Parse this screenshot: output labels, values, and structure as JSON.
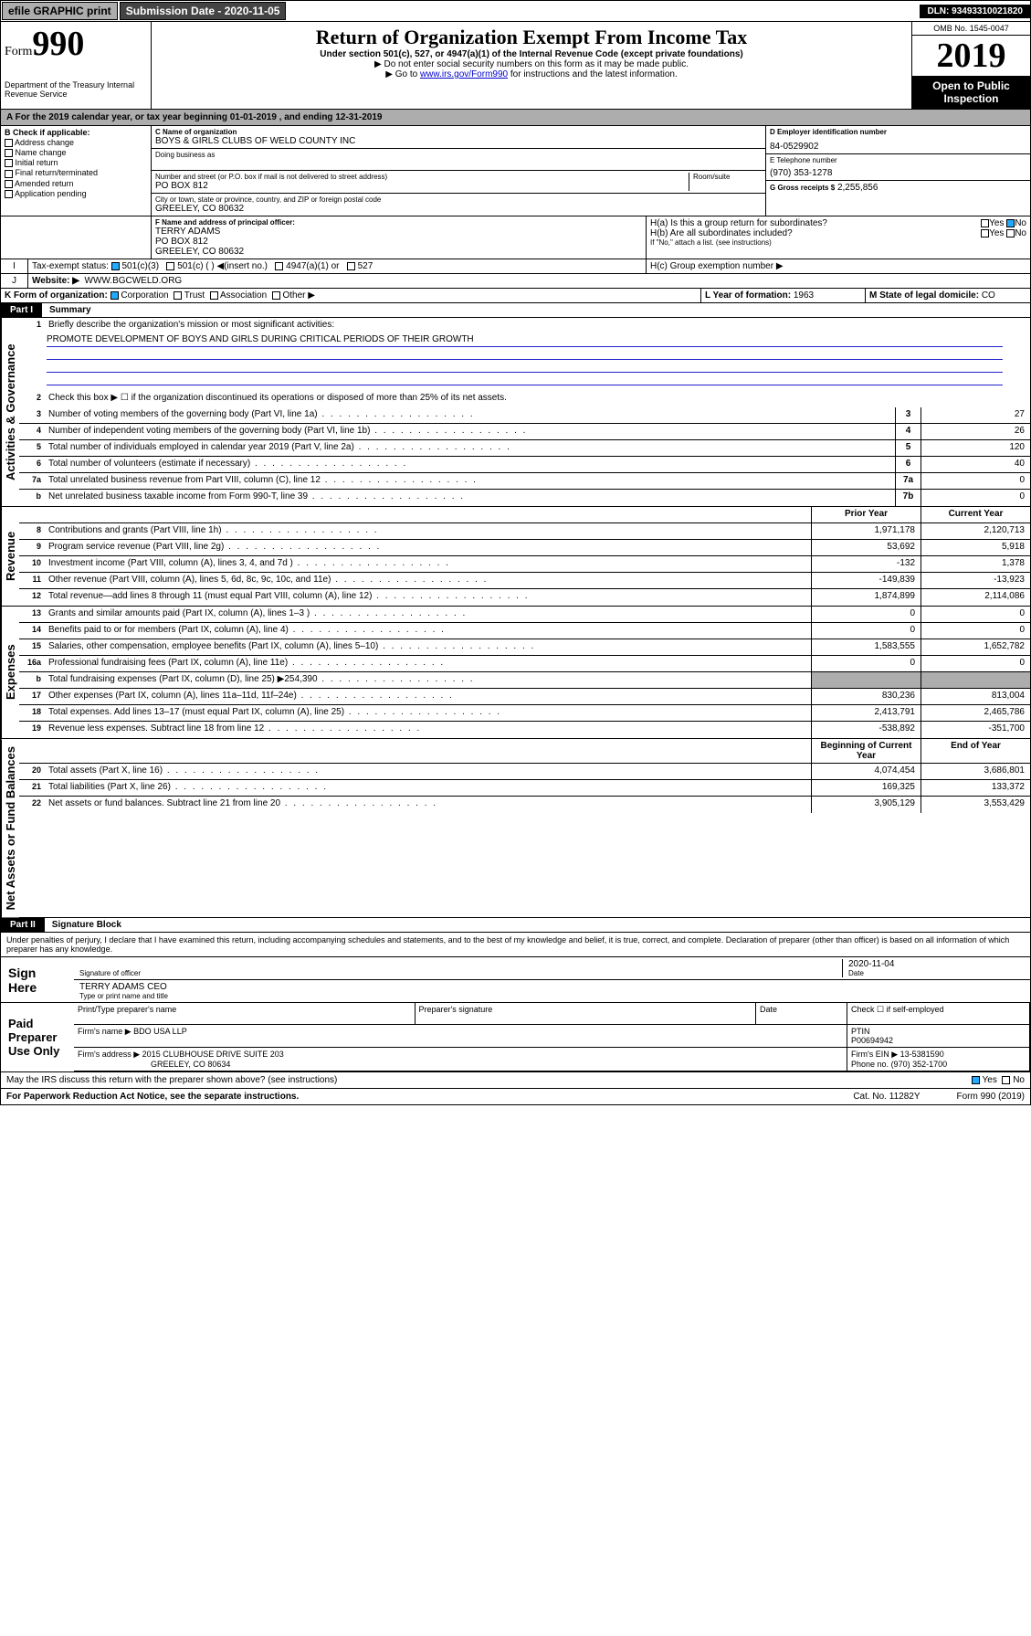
{
  "topbar": {
    "efile": "efile GRAPHIC print",
    "subLabel": "Submission Date - 2020-11-05",
    "dln": "DLN: 93493310021820"
  },
  "header": {
    "formWord": "Form",
    "formNum": "990",
    "dept": "Department of the Treasury\nInternal Revenue Service",
    "title": "Return of Organization Exempt From Income Tax",
    "sub": "Under section 501(c), 527, or 4947(a)(1) of the Internal Revenue Code (except private foundations)",
    "note1": "▶ Do not enter social security numbers on this form as it may be made public.",
    "note2_pre": "▶ Go to ",
    "note2_link": "www.irs.gov/Form990",
    "note2_post": " for instructions and the latest information.",
    "omb": "OMB No. 1545-0047",
    "year": "2019",
    "inspection": "Open to Public Inspection"
  },
  "periodA": "A For the 2019 calendar year, or tax year beginning 01-01-2019   , and ending 12-31-2019",
  "boxB": {
    "label": "B Check if applicable:",
    "items": [
      "Address change",
      "Name change",
      "Initial return",
      "Final return/terminated",
      "Amended return",
      "Application pending"
    ]
  },
  "boxC": {
    "nameLabel": "C Name of organization",
    "name": "BOYS & GIRLS CLUBS OF WELD COUNTY INC",
    "dbaLabel": "Doing business as",
    "dba": "",
    "addrLabel": "Number and street (or P.O. box if mail is not delivered to street address)",
    "roomLabel": "Room/suite",
    "addr": "PO BOX 812",
    "cityLabel": "City or town, state or province, country, and ZIP or foreign postal code",
    "city": "GREELEY, CO  80632"
  },
  "boxD": {
    "label": "D Employer identification number",
    "val": "84-0529902"
  },
  "boxE": {
    "label": "E Telephone number",
    "val": "(970) 353-1278"
  },
  "boxG": {
    "label": "G Gross receipts $",
    "val": "2,255,856"
  },
  "boxF": {
    "label": "F  Name and address of principal officer:",
    "name": "TERRY ADAMS",
    "addr1": "PO BOX 812",
    "addr2": "GREELEY, CO  80632"
  },
  "boxH": {
    "a": "H(a)  Is this a group return for subordinates?",
    "b": "H(b)  Are all subordinates included?",
    "bNote": "If \"No,\" attach a list. (see instructions)",
    "c": "H(c)  Group exemption number ▶",
    "yes": "Yes",
    "no": "No"
  },
  "boxI": {
    "label": "Tax-exempt status:",
    "opts": [
      "501(c)(3)",
      "501(c) (  ) ◀(insert no.)",
      "4947(a)(1) or",
      "527"
    ]
  },
  "boxJ": {
    "label": "Website: ▶",
    "val": "WWW.BGCWELD.ORG"
  },
  "boxK": {
    "label": "K Form of organization:",
    "opts": [
      "Corporation",
      "Trust",
      "Association",
      "Other ▶"
    ]
  },
  "boxL": {
    "label": "L Year of formation:",
    "val": "1963"
  },
  "boxM": {
    "label": "M State of legal domicile:",
    "val": "CO"
  },
  "part1": {
    "hdr": "Part I",
    "title": "Summary",
    "l1": "Briefly describe the organization's mission or most significant activities:",
    "mission": "PROMOTE DEVELOPMENT OF BOYS AND GIRLS DURING CRITICAL PERIODS OF THEIR GROWTH",
    "l2": "Check this box ▶ ☐  if the organization discontinued its operations or disposed of more than 25% of its net assets.",
    "govLabel": "Activities & Governance",
    "revLabel": "Revenue",
    "expLabel": "Expenses",
    "netLabel": "Net Assets or Fund Balances",
    "lines_gov": [
      {
        "n": "3",
        "t": "Number of voting members of the governing body (Part VI, line 1a)",
        "b": "3",
        "v": "27"
      },
      {
        "n": "4",
        "t": "Number of independent voting members of the governing body (Part VI, line 1b)",
        "b": "4",
        "v": "26"
      },
      {
        "n": "5",
        "t": "Total number of individuals employed in calendar year 2019 (Part V, line 2a)",
        "b": "5",
        "v": "120"
      },
      {
        "n": "6",
        "t": "Total number of volunteers (estimate if necessary)",
        "b": "6",
        "v": "40"
      },
      {
        "n": "7a",
        "t": "Total unrelated business revenue from Part VIII, column (C), line 12",
        "b": "7a",
        "v": "0"
      },
      {
        "n": "b",
        "t": "Net unrelated business taxable income from Form 990-T, line 39",
        "b": "7b",
        "v": "0"
      }
    ],
    "col_py": "Prior Year",
    "col_cy": "Current Year",
    "col_beg": "Beginning of Current Year",
    "col_end": "End of Year",
    "lines_rev": [
      {
        "n": "8",
        "t": "Contributions and grants (Part VIII, line 1h)",
        "py": "1,971,178",
        "cy": "2,120,713"
      },
      {
        "n": "9",
        "t": "Program service revenue (Part VIII, line 2g)",
        "py": "53,692",
        "cy": "5,918"
      },
      {
        "n": "10",
        "t": "Investment income (Part VIII, column (A), lines 3, 4, and 7d )",
        "py": "-132",
        "cy": "1,378"
      },
      {
        "n": "11",
        "t": "Other revenue (Part VIII, column (A), lines 5, 6d, 8c, 9c, 10c, and 11e)",
        "py": "-149,839",
        "cy": "-13,923"
      },
      {
        "n": "12",
        "t": "Total revenue—add lines 8 through 11 (must equal Part VIII, column (A), line 12)",
        "py": "1,874,899",
        "cy": "2,114,086"
      }
    ],
    "lines_exp": [
      {
        "n": "13",
        "t": "Grants and similar amounts paid (Part IX, column (A), lines 1–3 )",
        "py": "0",
        "cy": "0"
      },
      {
        "n": "14",
        "t": "Benefits paid to or for members (Part IX, column (A), line 4)",
        "py": "0",
        "cy": "0"
      },
      {
        "n": "15",
        "t": "Salaries, other compensation, employee benefits (Part IX, column (A), lines 5–10)",
        "py": "1,583,555",
        "cy": "1,652,782"
      },
      {
        "n": "16a",
        "t": "Professional fundraising fees (Part IX, column (A), line 11e)",
        "py": "0",
        "cy": "0"
      },
      {
        "n": "b",
        "t": "Total fundraising expenses (Part IX, column (D), line 25) ▶254,390",
        "py": "",
        "cy": "",
        "shade": true
      },
      {
        "n": "17",
        "t": "Other expenses (Part IX, column (A), lines 11a–11d, 11f–24e)",
        "py": "830,236",
        "cy": "813,004"
      },
      {
        "n": "18",
        "t": "Total expenses. Add lines 13–17 (must equal Part IX, column (A), line 25)",
        "py": "2,413,791",
        "cy": "2,465,786"
      },
      {
        "n": "19",
        "t": "Revenue less expenses. Subtract line 18 from line 12",
        "py": "-538,892",
        "cy": "-351,700"
      }
    ],
    "lines_net": [
      {
        "n": "20",
        "t": "Total assets (Part X, line 16)",
        "py": "4,074,454",
        "cy": "3,686,801"
      },
      {
        "n": "21",
        "t": "Total liabilities (Part X, line 26)",
        "py": "169,325",
        "cy": "133,372"
      },
      {
        "n": "22",
        "t": "Net assets or fund balances. Subtract line 21 from line 20",
        "py": "3,905,129",
        "cy": "3,553,429"
      }
    ]
  },
  "part2": {
    "hdr": "Part II",
    "title": "Signature Block",
    "perjury": "Under penalties of perjury, I declare that I have examined this return, including accompanying schedules and statements, and to the best of my knowledge and belief, it is true, correct, and complete. Declaration of preparer (other than officer) is based on all information of which preparer has any knowledge.",
    "signHere": "Sign Here",
    "sigDate": "2020-11-04",
    "sigOfficer": "Signature of officer",
    "sigDateLbl": "Date",
    "sigName": "TERRY ADAMS CEO",
    "sigNameLbl": "Type or print name and title",
    "paid": "Paid Preparer Use Only",
    "prepName": "Print/Type preparer's name",
    "prepSig": "Preparer's signature",
    "prepDate": "Date",
    "checkSelf": "Check ☐ if self-employed",
    "ptin": "PTIN",
    "ptinVal": "P00694942",
    "firmName": "Firm's name    ▶",
    "firmNameVal": "BDO USA LLP",
    "firmEin": "Firm's EIN ▶",
    "firmEinVal": "13-5381590",
    "firmAddr": "Firm's address ▶",
    "firmAddrVal": "2015 CLUBHOUSE DRIVE SUITE 203",
    "firmAddr2": "GREELEY, CO  80634",
    "phone": "Phone no.",
    "phoneVal": "(970) 352-1700",
    "discuss": "May the IRS discuss this return with the preparer shown above? (see instructions)",
    "paperwork": "For Paperwork Reduction Act Notice, see the separate instructions.",
    "cat": "Cat. No. 11282Y",
    "formFoot": "Form 990 (2019)"
  }
}
